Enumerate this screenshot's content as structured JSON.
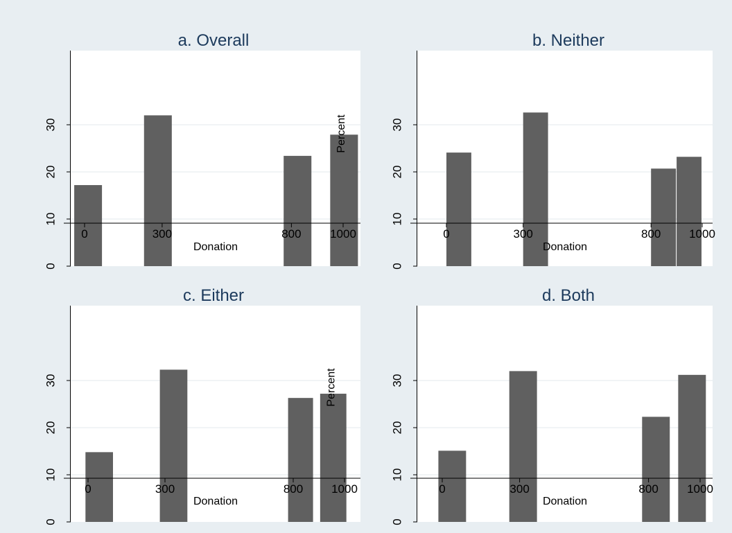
{
  "background_color": "#e8eef2",
  "plot_background_color": "#ffffff",
  "bar_color": "#606060",
  "title_color": "#1c3a5c",
  "chart_data": [
    {
      "type": "bar",
      "title": "a. Overall",
      "xlabel": "Donation",
      "ylabel": "Percent",
      "x_ticks": [
        0,
        300,
        800,
        1000
      ],
      "y_ticks": [
        0,
        10,
        20,
        30
      ],
      "ylim": [
        0,
        34
      ],
      "grid": true,
      "bars": [
        {
          "x_min": -40,
          "x_max": 70,
          "value": 17.2
        },
        {
          "x_min": 230,
          "x_max": 340,
          "value": 32.0
        },
        {
          "x_min": 770,
          "x_max": 880,
          "value": 23.4
        },
        {
          "x_min": 950,
          "x_max": 1060,
          "value": 27.9
        }
      ]
    },
    {
      "type": "bar",
      "title": "b. Neither",
      "xlabel": "Donation",
      "ylabel": "",
      "x_ticks": [
        0,
        300,
        800,
        1000
      ],
      "y_ticks": [
        0,
        10,
        20,
        30
      ],
      "ylim": [
        0,
        34
      ],
      "grid": true,
      "bars": [
        {
          "x_min": 0,
          "x_max": 100,
          "value": 24.1
        },
        {
          "x_min": 300,
          "x_max": 400,
          "value": 32.6
        },
        {
          "x_min": 800,
          "x_max": 900,
          "value": 20.7
        },
        {
          "x_min": 900,
          "x_max": 1000,
          "value": 23.2
        }
      ]
    },
    {
      "type": "bar",
      "title": "c. Either",
      "xlabel": "Donation",
      "ylabel": "Percent",
      "x_ticks": [
        0,
        300,
        800,
        1000
      ],
      "y_ticks": [
        0,
        10,
        20,
        30
      ],
      "ylim": [
        0,
        34
      ],
      "grid": true,
      "bars": [
        {
          "x_min": -10,
          "x_max": 100,
          "value": 14.8
        },
        {
          "x_min": 280,
          "x_max": 390,
          "value": 32.3
        },
        {
          "x_min": 780,
          "x_max": 880,
          "value": 26.3
        },
        {
          "x_min": 905,
          "x_max": 1010,
          "value": 27.2
        }
      ]
    },
    {
      "type": "bar",
      "title": "d. Both",
      "xlabel": "Donation",
      "ylabel": "",
      "x_ticks": [
        0,
        300,
        800,
        1000
      ],
      "y_ticks": [
        0,
        10,
        20,
        30
      ],
      "ylim": [
        0,
        34
      ],
      "grid": true,
      "bars": [
        {
          "x_min": -15,
          "x_max": 95,
          "value": 15.1
        },
        {
          "x_min": 260,
          "x_max": 370,
          "value": 32.0
        },
        {
          "x_min": 775,
          "x_max": 885,
          "value": 22.3
        },
        {
          "x_min": 915,
          "x_max": 1025,
          "value": 31.2
        }
      ]
    }
  ]
}
